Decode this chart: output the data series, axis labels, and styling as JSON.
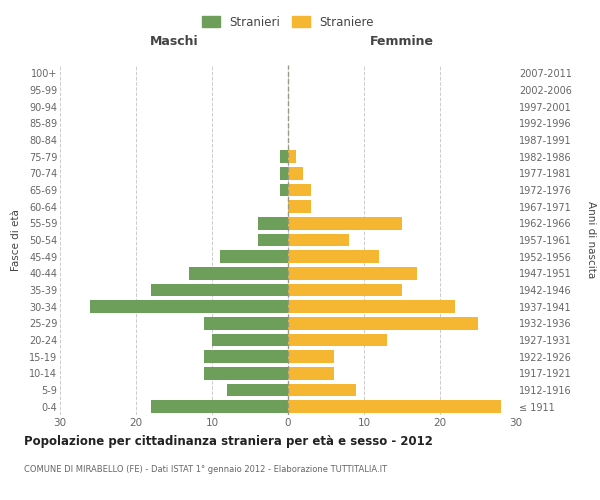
{
  "age_groups": [
    "100+",
    "95-99",
    "90-94",
    "85-89",
    "80-84",
    "75-79",
    "70-74",
    "65-69",
    "60-64",
    "55-59",
    "50-54",
    "45-49",
    "40-44",
    "35-39",
    "30-34",
    "25-29",
    "20-24",
    "15-19",
    "10-14",
    "5-9",
    "0-4"
  ],
  "birth_years": [
    "≤ 1911",
    "1912-1916",
    "1917-1921",
    "1922-1926",
    "1927-1931",
    "1932-1936",
    "1937-1941",
    "1942-1946",
    "1947-1951",
    "1952-1956",
    "1957-1961",
    "1962-1966",
    "1967-1971",
    "1972-1976",
    "1977-1981",
    "1982-1986",
    "1987-1991",
    "1992-1996",
    "1997-2001",
    "2002-2006",
    "2007-2011"
  ],
  "maschi": [
    0,
    0,
    0,
    0,
    0,
    1,
    1,
    1,
    0,
    4,
    4,
    9,
    13,
    18,
    26,
    11,
    10,
    11,
    11,
    8,
    18
  ],
  "femmine": [
    0,
    0,
    0,
    0,
    0,
    1,
    2,
    3,
    3,
    15,
    8,
    12,
    17,
    15,
    22,
    25,
    13,
    6,
    6,
    9,
    28
  ],
  "color_maschi": "#6d9e5a",
  "color_femmine": "#f5b731",
  "title": "Popolazione per cittadinanza straniera per età e sesso - 2012",
  "subtitle": "COMUNE DI MIRABELLO (FE) - Dati ISTAT 1° gennaio 2012 - Elaborazione TUTTITALIA.IT",
  "ylabel_left": "Fasce di età",
  "ylabel_right": "Anni di nascita",
  "xlabel_left": "Maschi",
  "xlabel_right": "Femmine",
  "legend_stranieri": "Stranieri",
  "legend_straniere": "Straniere",
  "xlim": 30,
  "background_color": "#ffffff",
  "grid_color": "#cccccc"
}
